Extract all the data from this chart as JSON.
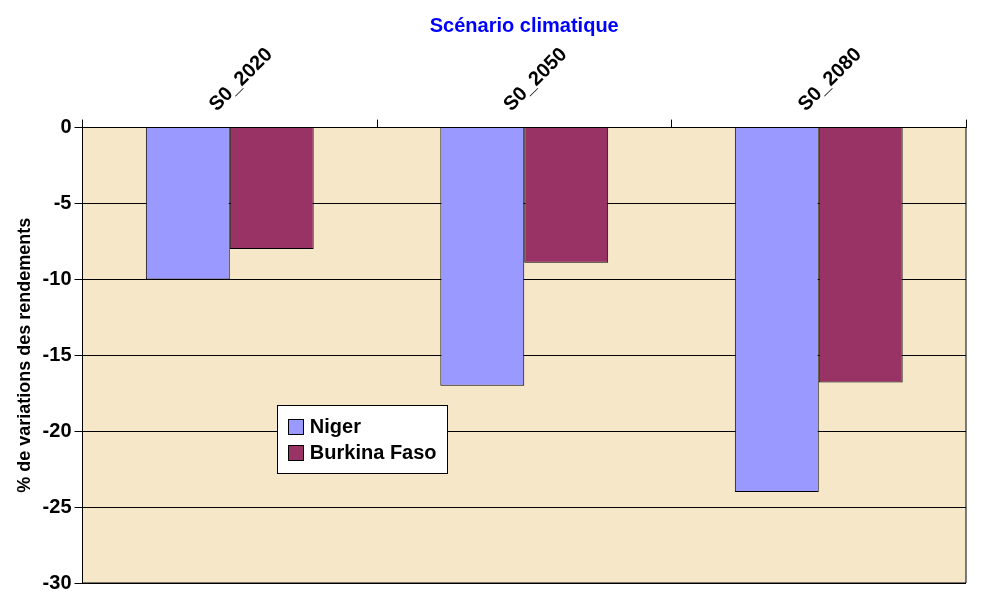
{
  "chart_data": {
    "type": "bar",
    "xlabel": "Scénario climatique",
    "ylabel": "% de variations des rendements",
    "categories": [
      "S0_2020",
      "S0_2050",
      "S0_2080"
    ],
    "series": [
      {
        "name": "Niger",
        "color": "#9999ff",
        "values": [
          -10,
          -17,
          -24
        ]
      },
      {
        "name": "Burkina Faso",
        "color": "#993366",
        "values": [
          -8,
          -8.9,
          -16.8
        ]
      }
    ],
    "ylim": [
      -30,
      0
    ],
    "yticks": [
      -30,
      -25,
      -20,
      -15,
      -10,
      -5,
      0
    ],
    "grid": "y",
    "legend": "bottom"
  }
}
